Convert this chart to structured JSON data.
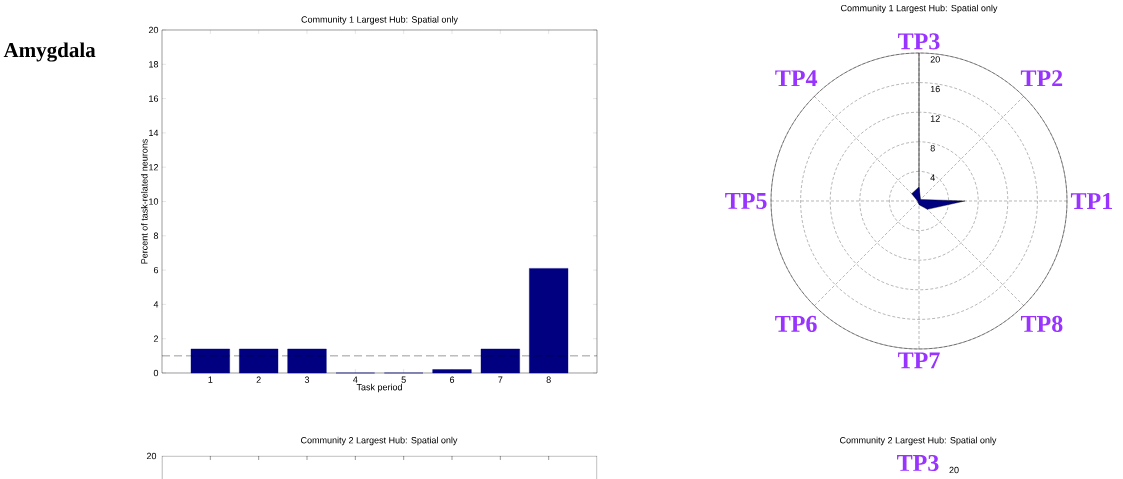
{
  "chart_data": [
    {
      "type": "bar",
      "title": "Community 1 Largest Hub: Spatial only",
      "xlabel": "Task period",
      "ylabel": "Percent of task-related neurons",
      "categories": [
        "1",
        "2",
        "3",
        "4",
        "5",
        "6",
        "7",
        "8"
      ],
      "values": [
        1.4,
        1.4,
        1.4,
        0,
        0,
        0.2,
        1.4,
        6.1
      ],
      "color": "#000080",
      "ylim": [
        0,
        20
      ],
      "yticks": [
        0,
        2,
        4,
        6,
        8,
        10,
        12,
        14,
        16,
        18,
        20
      ],
      "ref_lines": [
        {
          "axis": "y",
          "value": 1,
          "color": "#000000",
          "line_style": "dashed"
        }
      ],
      "annotations": [
        "Amygdala"
      ]
    },
    {
      "type": "radar",
      "title": "Community 1 Largest Hub: Spatial only",
      "categories": [
        "TP3",
        "TP2",
        "TP1",
        "TP8",
        "TP7",
        "TP6",
        "TP5",
        "TP4"
      ],
      "series": [
        {
          "color": "#000080",
          "values": [
            1.9,
            0.3,
            6.2,
            1.6,
            0.5,
            0.2,
            0.2,
            1.4
          ]
        }
      ],
      "ylim": [
        0,
        20
      ],
      "yticks": [
        4,
        8,
        12,
        16,
        20
      ],
      "grid": true
    },
    {
      "type": "other",
      "title": "Community 2 Largest Hub: Spatial only",
      "annotations": [
        "20"
      ]
    },
    {
      "type": "other",
      "title": "Community 2 Largest Hub: Spatial only",
      "annotations": [
        "TP3",
        "20"
      ]
    }
  ]
}
